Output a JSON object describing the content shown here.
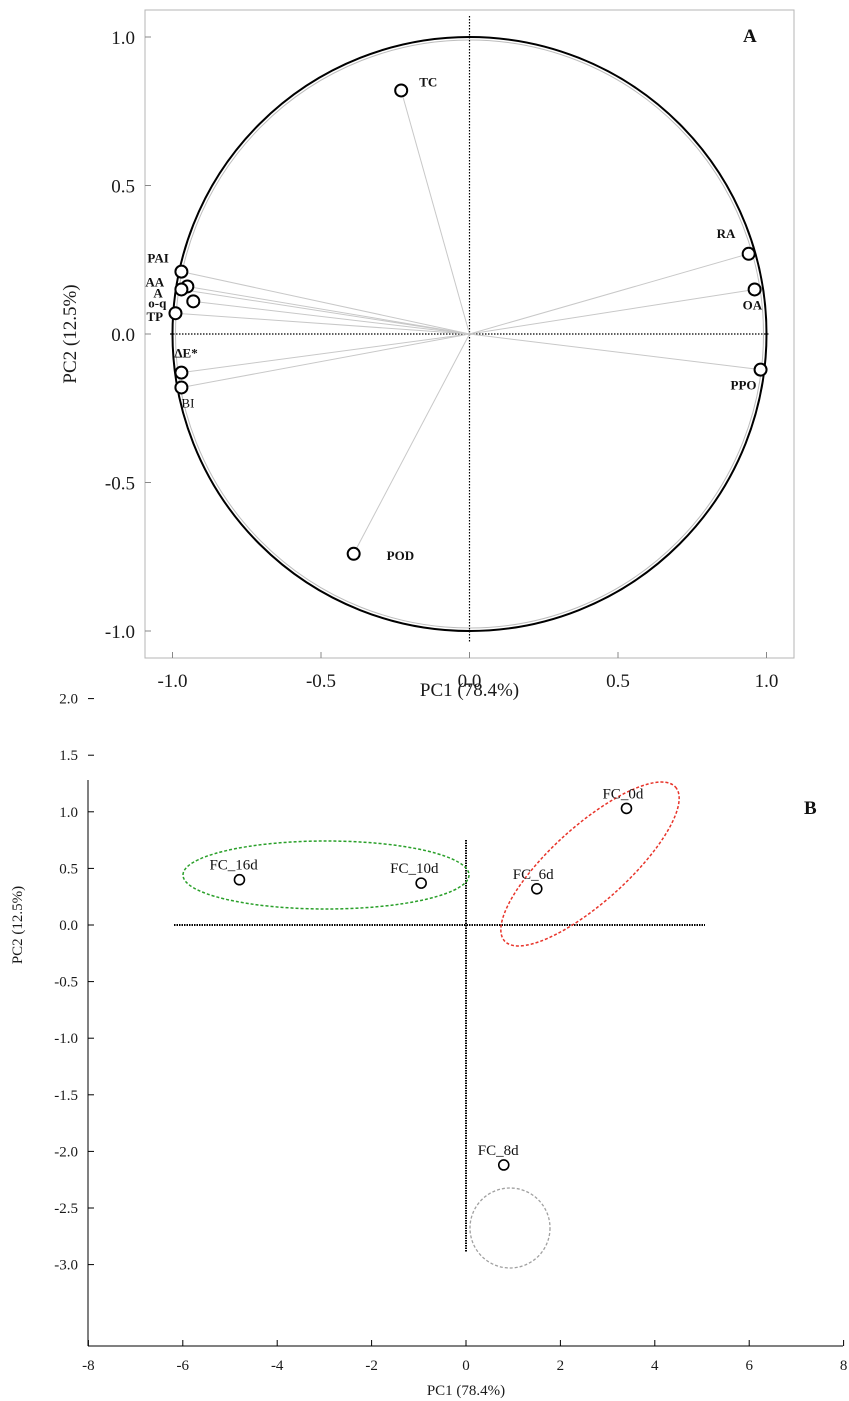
{
  "chart_data": [
    {
      "type": "scatter",
      "panel_label": "A",
      "xlabel": "PC1 (78.4%)",
      "ylabel": "PC2 (12.5%)",
      "xlim": [
        -1.1,
        1.1
      ],
      "ylim": [
        -1.1,
        1.1
      ],
      "x_ticks": [
        "-1.0",
        "-0.5",
        "0.0",
        "0.5",
        "1.0"
      ],
      "y_ticks": [
        "1.0",
        "0.5",
        "0.0",
        "-0.5",
        "-1.0"
      ],
      "unit_circle": true,
      "points": [
        {
          "label": "TC",
          "x": -0.23,
          "y": 0.82
        },
        {
          "label": "RA",
          "x": 0.94,
          "y": 0.27
        },
        {
          "label": "OA",
          "x": 0.96,
          "y": 0.15
        },
        {
          "label": "PPO",
          "x": 0.98,
          "y": -0.12
        },
        {
          "label": "PAI",
          "x": -0.97,
          "y": 0.21
        },
        {
          "label": "AA",
          "x": -0.95,
          "y": 0.16
        },
        {
          "label": "A",
          "x": -0.97,
          "y": 0.15
        },
        {
          "label": "o-q",
          "x": -0.93,
          "y": 0.11
        },
        {
          "label": "TP",
          "x": -0.99,
          "y": 0.07
        },
        {
          "label": "ΔE*",
          "x": -0.97,
          "y": -0.13
        },
        {
          "label": "BI",
          "x": -0.97,
          "y": -0.18
        },
        {
          "label": "POD",
          "x": -0.39,
          "y": -0.74
        }
      ]
    },
    {
      "type": "scatter",
      "panel_label": "B",
      "xlabel": "PC1 (78.4%)",
      "ylabel": "PC2 (12.5%)",
      "xlim": [
        -8,
        8
      ],
      "ylim": [
        -3.0,
        2.0
      ],
      "x_ticks": [
        "-8",
        "-6",
        "-4",
        "-2",
        "0",
        "2",
        "4",
        "6",
        "8"
      ],
      "y_ticks": [
        "2.0",
        "1.5",
        "1.0",
        "0.5",
        "0.0",
        "-0.5",
        "-1.0",
        "-1.5",
        "-2.0",
        "-2.5",
        "-3.0"
      ],
      "points": [
        {
          "label": "FC_0d",
          "x": 3.4,
          "y": 1.03
        },
        {
          "label": "FC_6d",
          "x": 1.5,
          "y": 0.32
        },
        {
          "label": "FC_10d",
          "x": -0.95,
          "y": 0.37
        },
        {
          "label": "FC_16d",
          "x": -4.8,
          "y": 0.4
        },
        {
          "label": "FC_8d",
          "x": 0.8,
          "y": -2.12
        }
      ],
      "clusters": [
        {
          "color": "#2aa02a",
          "members": [
            "FC_16d",
            "FC_10d"
          ]
        },
        {
          "color": "#e8342a",
          "members": [
            "FC_0d",
            "FC_6d"
          ]
        },
        {
          "color": "#a0a0a0",
          "members": [
            "FC_8d"
          ]
        }
      ]
    }
  ]
}
